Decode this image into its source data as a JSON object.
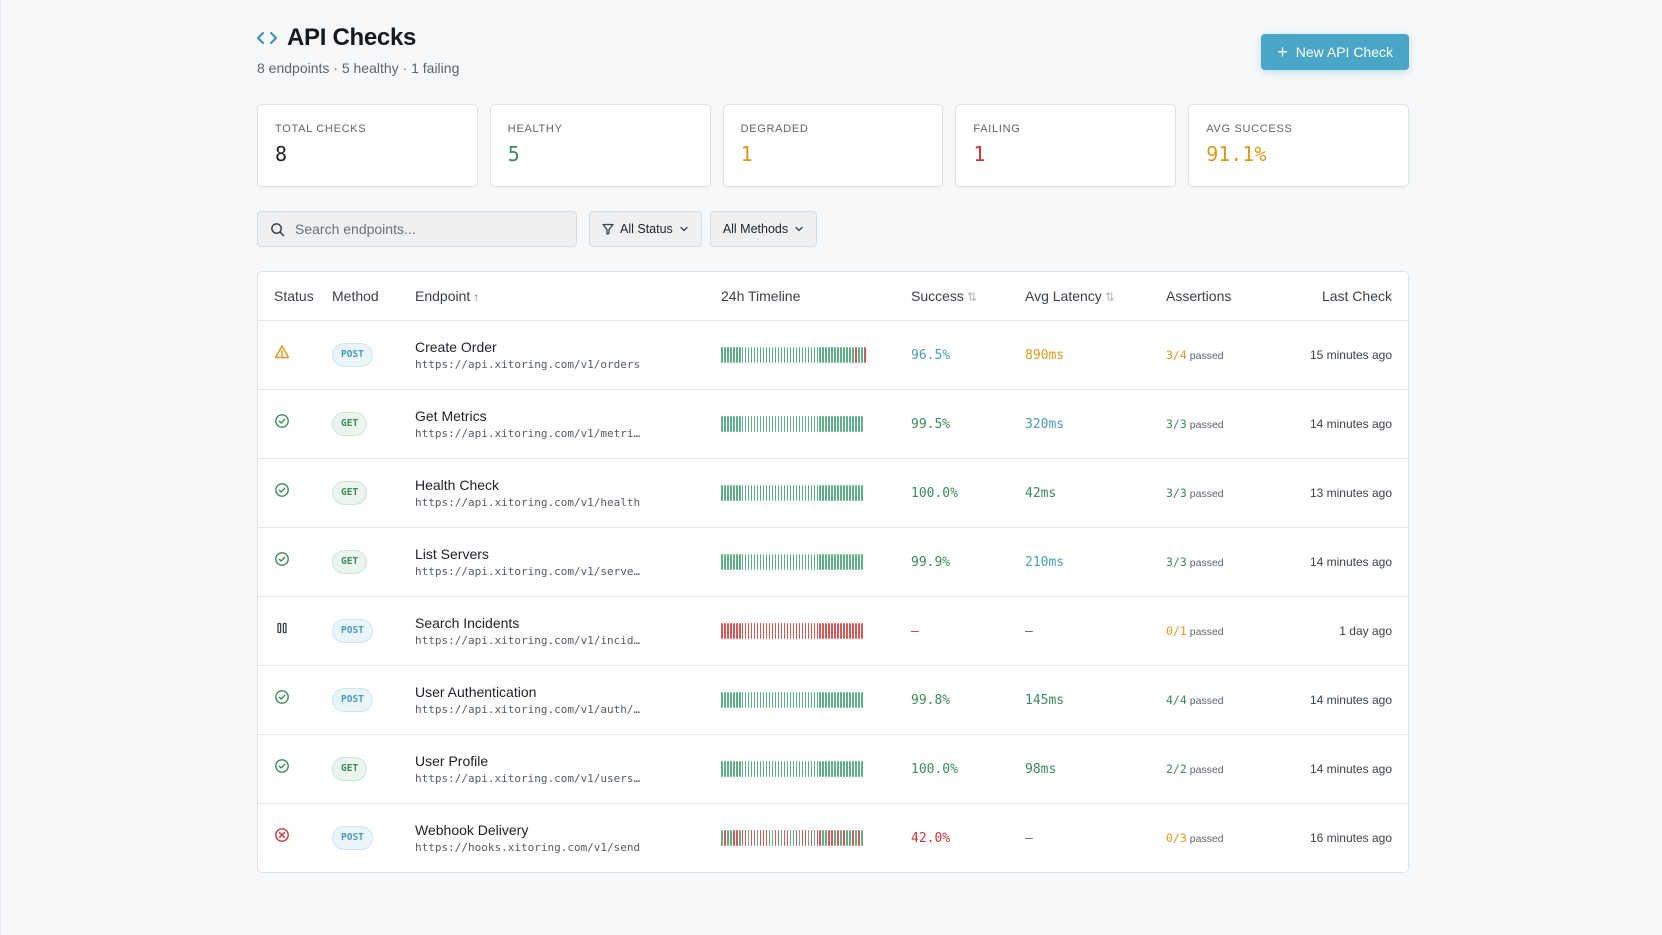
{
  "colors": {
    "accent": "#4aa6c6",
    "healthy": "#3d8a5c",
    "degraded": "#d99a21",
    "failing": "#c8383a",
    "info": "#4a9cbc",
    "bar_green": "#5fb086",
    "bar_red": "#d5585a"
  },
  "header": {
    "title": "API Checks",
    "title_icon": "code-icon",
    "subtitle": "8 endpoints · 5 healthy · 1 failing",
    "new_button_label": "New API Check",
    "new_button_icon": "plus-icon"
  },
  "stats": [
    {
      "label": "TOTAL CHECKS",
      "value": "8",
      "color": "#1f2328"
    },
    {
      "label": "HEALTHY",
      "value": "5",
      "color": "#3d8a5c"
    },
    {
      "label": "DEGRADED",
      "value": "1",
      "color": "#d99a21"
    },
    {
      "label": "FAILING",
      "value": "1",
      "color": "#c8383a"
    },
    {
      "label": "AVG SUCCESS",
      "value": "91.1%",
      "color": "#d99a21"
    }
  ],
  "filters": {
    "search_placeholder": "Search endpoints...",
    "search_value": "",
    "status_label": "All Status",
    "methods_label": "All Methods"
  },
  "table": {
    "columns": {
      "status": "Status",
      "method": "Method",
      "endpoint": "Endpoint",
      "timeline": "24h Timeline",
      "success": "Success",
      "latency": "Avg Latency",
      "assertions": "Assertions",
      "last_check": "Last Check"
    },
    "rows": [
      {
        "status": "degraded",
        "status_icon": "warning-icon",
        "method": "POST",
        "name": "Create Order",
        "url": "https://api.xitoring.com/v1/orders",
        "timeline": "gggggggggggggggggggggggggggggggggggggggggggggrggr",
        "success": "96.5%",
        "success_color": "#4a9cbc",
        "latency": "890ms",
        "latency_color": "#d99a21",
        "assert_value": "3/4",
        "assert_color": "#d99a21",
        "assert_word": "passed",
        "last_check": "15 minutes ago"
      },
      {
        "status": "healthy",
        "status_icon": "check-circle-icon",
        "method": "GET",
        "name": "Get Metrics",
        "url": "https://api.xitoring.com/v1/metri…",
        "timeline": "gggggggggggggggggggggggggggggggggggggggggggggggg",
        "success": "99.5%",
        "success_color": "#3d8a5c",
        "latency": "320ms",
        "latency_color": "#4a9cbc",
        "assert_value": "3/3",
        "assert_color": "#3d8a5c",
        "assert_word": "passed",
        "last_check": "14 minutes ago"
      },
      {
        "status": "healthy",
        "status_icon": "check-circle-icon",
        "method": "GET",
        "name": "Health Check",
        "url": "https://api.xitoring.com/v1/health",
        "timeline": "gggggggggggggggggggggggggggggggggggggggggggggggg",
        "success": "100.0%",
        "success_color": "#3d8a5c",
        "latency": "42ms",
        "latency_color": "#3d8a5c",
        "assert_value": "3/3",
        "assert_color": "#3d8a5c",
        "assert_word": "passed",
        "last_check": "13 minutes ago"
      },
      {
        "status": "healthy",
        "status_icon": "check-circle-icon",
        "method": "GET",
        "name": "List Servers",
        "url": "https://api.xitoring.com/v1/serve…",
        "timeline": "gggggggggggggggggggggggggggggggggggggggggggggggg",
        "success": "99.9%",
        "success_color": "#3d8a5c",
        "latency": "210ms",
        "latency_color": "#4a9cbc",
        "assert_value": "3/3",
        "assert_color": "#3d8a5c",
        "assert_word": "passed",
        "last_check": "14 minutes ago"
      },
      {
        "status": "paused",
        "status_icon": "pause-icon",
        "method": "POST",
        "name": "Search Incidents",
        "url": "https://api.xitoring.com/v1/incid…",
        "timeline": "rrrrrrrrrrrrrrrrrrrrrrrrrrrrrrrrrrrrrrrrrrrrrrrr",
        "success": "—",
        "success_color": "#c8383a",
        "latency": "—",
        "latency_color": "#5d646d",
        "assert_value": "0/1",
        "assert_color": "#d99a21",
        "assert_word": "passed",
        "last_check": "1 day ago"
      },
      {
        "status": "healthy",
        "status_icon": "check-circle-icon",
        "method": "POST",
        "name": "User Authentication",
        "url": "https://api.xitoring.com/v1/auth/…",
        "timeline": "gggggggggggggggggggggggggggggggggggggggggggggggg",
        "success": "99.8%",
        "success_color": "#3d8a5c",
        "latency": "145ms",
        "latency_color": "#3d8a5c",
        "assert_value": "4/4",
        "assert_color": "#3d8a5c",
        "assert_word": "passed",
        "last_check": "14 minutes ago"
      },
      {
        "status": "healthy",
        "status_icon": "check-circle-icon",
        "method": "GET",
        "name": "User Profile",
        "url": "https://api.xitoring.com/v1/users…",
        "timeline": "gggggggggggggggggggggggggggggggggggggggggggggggg",
        "success": "100.0%",
        "success_color": "#3d8a5c",
        "latency": "98ms",
        "latency_color": "#3d8a5c",
        "assert_value": "2/2",
        "assert_color": "#3d8a5c",
        "assert_word": "passed",
        "last_check": "14 minutes ago"
      },
      {
        "status": "failing",
        "status_icon": "x-circle-icon",
        "method": "POST",
        "name": "Webhook Delivery",
        "url": "https://hooks.xitoring.com/v1/send",
        "timeline": "grggrrgrrgrrgrrrggrrgrrggrgrrgrgrrggrrgrgrggrgrg",
        "success": "42.0%",
        "success_color": "#c8383a",
        "latency": "—",
        "latency_color": "#5d646d",
        "assert_value": "0/3",
        "assert_color": "#d99a21",
        "assert_word": "passed",
        "last_check": "16 minutes ago"
      }
    ]
  }
}
